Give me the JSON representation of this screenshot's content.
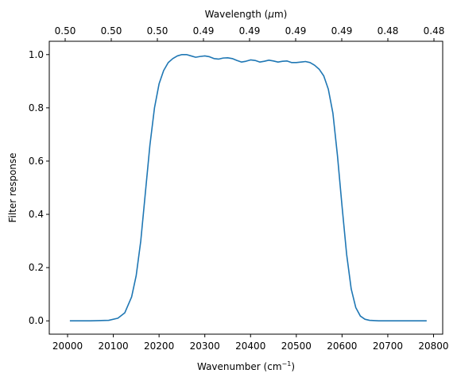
{
  "chart_data": {
    "type": "line",
    "title": "",
    "xlabel": "Wavenumber (cm",
    "xlabel_sup": "−1",
    "xlabel_close": ")",
    "ylabel": "Filter response",
    "top_xlabel_prefix": "Wavelength (",
    "top_xlabel_mu": "μ",
    "top_xlabel_suffix": "m)",
    "xlim": [
      19960,
      20820
    ],
    "ylim": [
      -0.05,
      1.05
    ],
    "x_ticks": [
      {
        "value": 20000,
        "label": "20000"
      },
      {
        "value": 20100,
        "label": "20100"
      },
      {
        "value": 20200,
        "label": "20200"
      },
      {
        "value": 20300,
        "label": "20300"
      },
      {
        "value": 20400,
        "label": "20400"
      },
      {
        "value": 20500,
        "label": "20500"
      },
      {
        "value": 20600,
        "label": "20600"
      },
      {
        "value": 20700,
        "label": "20700"
      },
      {
        "value": 20800,
        "label": "20800"
      }
    ],
    "y_ticks": [
      {
        "value": 0.0,
        "label": "0.0"
      },
      {
        "value": 0.2,
        "label": "0.2"
      },
      {
        "value": 0.4,
        "label": "0.4"
      },
      {
        "value": 0.6,
        "label": "0.6"
      },
      {
        "value": 0.8,
        "label": "0.8"
      },
      {
        "value": 1.0,
        "label": "1.0"
      }
    ],
    "top_ticks": [
      {
        "value": 20000,
        "label": "0.50"
      },
      {
        "value": 20108,
        "label": "0.50"
      },
      {
        "value": 20217,
        "label": "0.50"
      },
      {
        "value": 20327,
        "label": "0.49"
      },
      {
        "value": 20436,
        "label": "0.49"
      },
      {
        "value": 20546,
        "label": "0.49"
      },
      {
        "value": 20658,
        "label": "0.49"
      },
      {
        "value": 20770,
        "label": "0.48"
      },
      {
        "value": 20882,
        "label": "0.48"
      }
    ],
    "top_ticks_visible": [
      {
        "value": 20005,
        "label": "0.50"
      },
      {
        "value": 20113,
        "label": "0.50"
      },
      {
        "value": 20222,
        "label": "0.50"
      },
      {
        "value": 20330,
        "label": "0.49"
      },
      {
        "value": 20438,
        "label": "0.49"
      },
      {
        "value": 20545,
        "label": "0.49"
      },
      {
        "value": 20653,
        "label": "0.49"
      },
      {
        "value": 20761,
        "label": "0.48"
      },
      {
        "value": 20785,
        "label": "0.48"
      }
    ],
    "series": [
      {
        "color": "#1f77b4",
        "x": [
          20005,
          20050,
          20090,
          20110,
          20125,
          20140,
          20150,
          20160,
          20170,
          20180,
          20190,
          20200,
          20210,
          20220,
          20230,
          20240,
          20250,
          20260,
          20270,
          20280,
          20290,
          20300,
          20310,
          20320,
          20330,
          20340,
          20350,
          20360,
          20370,
          20380,
          20390,
          20400,
          20410,
          20420,
          20430,
          20440,
          20450,
          20460,
          20470,
          20480,
          20490,
          20500,
          20510,
          20520,
          20530,
          20540,
          20550,
          20560,
          20570,
          20580,
          20590,
          20600,
          20610,
          20620,
          20630,
          20640,
          20650,
          20660,
          20680,
          20720,
          20785
        ],
        "y": [
          0.0,
          0.0,
          0.002,
          0.01,
          0.03,
          0.09,
          0.17,
          0.3,
          0.48,
          0.66,
          0.8,
          0.89,
          0.94,
          0.97,
          0.985,
          0.995,
          1.0,
          1.0,
          0.995,
          0.99,
          0.993,
          0.995,
          0.992,
          0.985,
          0.983,
          0.987,
          0.988,
          0.985,
          0.978,
          0.972,
          0.975,
          0.98,
          0.978,
          0.972,
          0.975,
          0.979,
          0.976,
          0.972,
          0.975,
          0.976,
          0.97,
          0.97,
          0.972,
          0.974,
          0.97,
          0.96,
          0.945,
          0.92,
          0.87,
          0.78,
          0.62,
          0.43,
          0.25,
          0.12,
          0.05,
          0.018,
          0.006,
          0.002,
          0.0,
          0.0,
          0.0
        ]
      }
    ]
  }
}
